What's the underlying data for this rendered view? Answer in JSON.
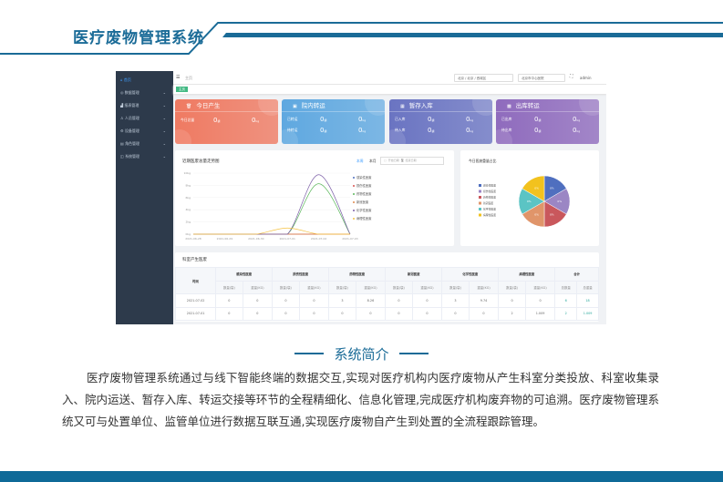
{
  "header": {
    "title": "医疗废物管理系统"
  },
  "app": {
    "sidebar": [
      {
        "label": "首页",
        "icon": "home-icon"
      },
      {
        "label": "数据管理",
        "icon": "data-icon"
      },
      {
        "label": "报表管理",
        "icon": "bar-chart-icon"
      },
      {
        "label": "人员管理",
        "icon": "user-icon"
      },
      {
        "label": "设备管理",
        "icon": "device-icon"
      },
      {
        "label": "角色管理",
        "icon": "document-icon"
      },
      {
        "label": "系统管理",
        "icon": "settings-icon"
      }
    ],
    "topbar": {
      "breadcrumb": "主页",
      "region_select": "北京 / 北京 / 西城区",
      "org_select": "北京市中心医院",
      "user": "admin",
      "tag": "主页"
    },
    "cards": [
      {
        "title": "今日产生",
        "icon": "trash-icon",
        "color": "#ef7a62",
        "rows": [
          {
            "label": "今日总量",
            "count": "0",
            "count_unit": "袋",
            "weight": "0",
            "weight_unit": "kg"
          }
        ]
      },
      {
        "title": "院内转运",
        "icon": "clipboard-icon",
        "color": "#5fa8e0",
        "rows": [
          {
            "label": "已转运",
            "count": "0",
            "count_unit": "袋",
            "weight": "0",
            "weight_unit": "kg"
          },
          {
            "label": "待转运",
            "count": "0",
            "count_unit": "袋",
            "weight": "0",
            "weight_unit": "kg"
          }
        ]
      },
      {
        "title": "暂存入库",
        "icon": "box-icon",
        "color": "#6a74c2",
        "rows": [
          {
            "label": "已入库",
            "count": "0",
            "count_unit": "袋",
            "weight": "0",
            "weight_unit": "kg"
          },
          {
            "label": "待入库",
            "count": "0",
            "count_unit": "袋",
            "weight": "0",
            "weight_unit": "kg"
          }
        ]
      },
      {
        "title": "出库转运",
        "icon": "truck-icon",
        "color": "#8f6bbd",
        "rows": [
          {
            "label": "已出库",
            "count": "0",
            "count_unit": "袋",
            "weight": "0",
            "weight_unit": "kg"
          },
          {
            "label": "待出库",
            "count": "0",
            "count_unit": "袋",
            "weight": "0",
            "weight_unit": "kg"
          }
        ]
      }
    ],
    "line_panel": {
      "title": "近期医废总量走势图",
      "tab_week": "本周",
      "tab_month": "本月",
      "start_placeholder": "开始日期",
      "to": "至",
      "end_placeholder": "结束日期"
    },
    "pie_panel": {
      "title": "今日医废重量占比"
    },
    "table": {
      "title": "科室产生医废",
      "time_header": "时间",
      "groups": [
        "感染性医废",
        "损伤性医废",
        "药物性医废",
        "新冠医废",
        "化学性医废",
        "病理性医废",
        "合计"
      ],
      "sub": [
        "数量(袋)",
        "重量(KG)",
        "数量(袋)",
        "重量(KG)",
        "数量(袋)",
        "重量(KG)",
        "数量(袋)",
        "重量(KG)",
        "数量(袋)",
        "重量(KG)",
        "数量(袋)",
        "重量(KG)",
        "总数量",
        "总重量"
      ],
      "rows": [
        [
          "2021-07-02",
          "0",
          "0",
          "0",
          "0",
          "3",
          "8.26",
          "0",
          "0",
          "3",
          "9.74",
          "0",
          "0",
          "6",
          "18"
        ],
        [
          "2021-07-01",
          "0",
          "0",
          "0",
          "0",
          "0",
          "0",
          "0",
          "0",
          "0",
          "0",
          "2",
          "1.009",
          "2",
          "1.009"
        ]
      ]
    }
  },
  "chart_data": [
    {
      "type": "line",
      "title": "近期医废总量走势图",
      "x": [
        "2021-06-28",
        "2021-06-29",
        "2021-06-30",
        "2021-07-01",
        "2021-07-02",
        "2021-07-03"
      ],
      "yticks": [
        "0kg",
        "2kg",
        "4kg",
        "6kg",
        "8kg",
        "10kg"
      ],
      "ylim": [
        0,
        10
      ],
      "legend": "right",
      "grid": true,
      "series": [
        {
          "name": "感染性医废",
          "color": "#4f6fbf",
          "values": [
            0,
            0,
            0,
            0,
            0,
            0
          ]
        },
        {
          "name": "损伤性医废",
          "color": "#d9534f",
          "values": [
            0,
            0,
            0,
            0,
            0,
            0
          ]
        },
        {
          "name": "药物性医废",
          "color": "#5cb85c",
          "values": [
            0,
            0,
            0,
            0,
            8.26,
            0
          ]
        },
        {
          "name": "新冠医废",
          "color": "#e08a4c",
          "values": [
            0,
            0,
            0,
            0,
            0,
            0
          ]
        },
        {
          "name": "化学性医废",
          "color": "#7b5ea7",
          "values": [
            0,
            0,
            0,
            0,
            9.74,
            0
          ]
        },
        {
          "name": "病理性医废",
          "color": "#f5c242",
          "values": [
            0,
            0,
            0,
            1.009,
            0,
            0
          ]
        }
      ]
    },
    {
      "type": "pie",
      "title": "今日医废重量占比",
      "legend": "left",
      "slices": [
        {
          "name": "感染性医废",
          "label": "0%",
          "color": "#4f6fbf"
        },
        {
          "name": "损伤性医废",
          "label": "0%",
          "color": "#9b86c4"
        },
        {
          "name": "药物性医废",
          "label": "0%",
          "color": "#c9575c"
        },
        {
          "name": "新冠医废",
          "label": "0%",
          "color": "#e0956a"
        },
        {
          "name": "化学性医废",
          "label": "0%",
          "color": "#5bc4c4"
        },
        {
          "name": "病理性医废",
          "label": "0%",
          "color": "#f2c21e"
        }
      ]
    }
  ],
  "intro": {
    "title": "系统简介",
    "text": "医疗废物管理系统通过与线下智能终端的数据交互,实现对医疗机构内医疗废物从产生科室分类投放、科室收集录入、院内运送、暂存入库、转运交接等环节的全程精细化、信息化管理,完成医疗机构废弃物的可追溯。医疗废物管理系统又可与处置单位、监管单位进行数据互联互通,实现医疗废物自产生到处置的全流程跟踪管理。"
  }
}
